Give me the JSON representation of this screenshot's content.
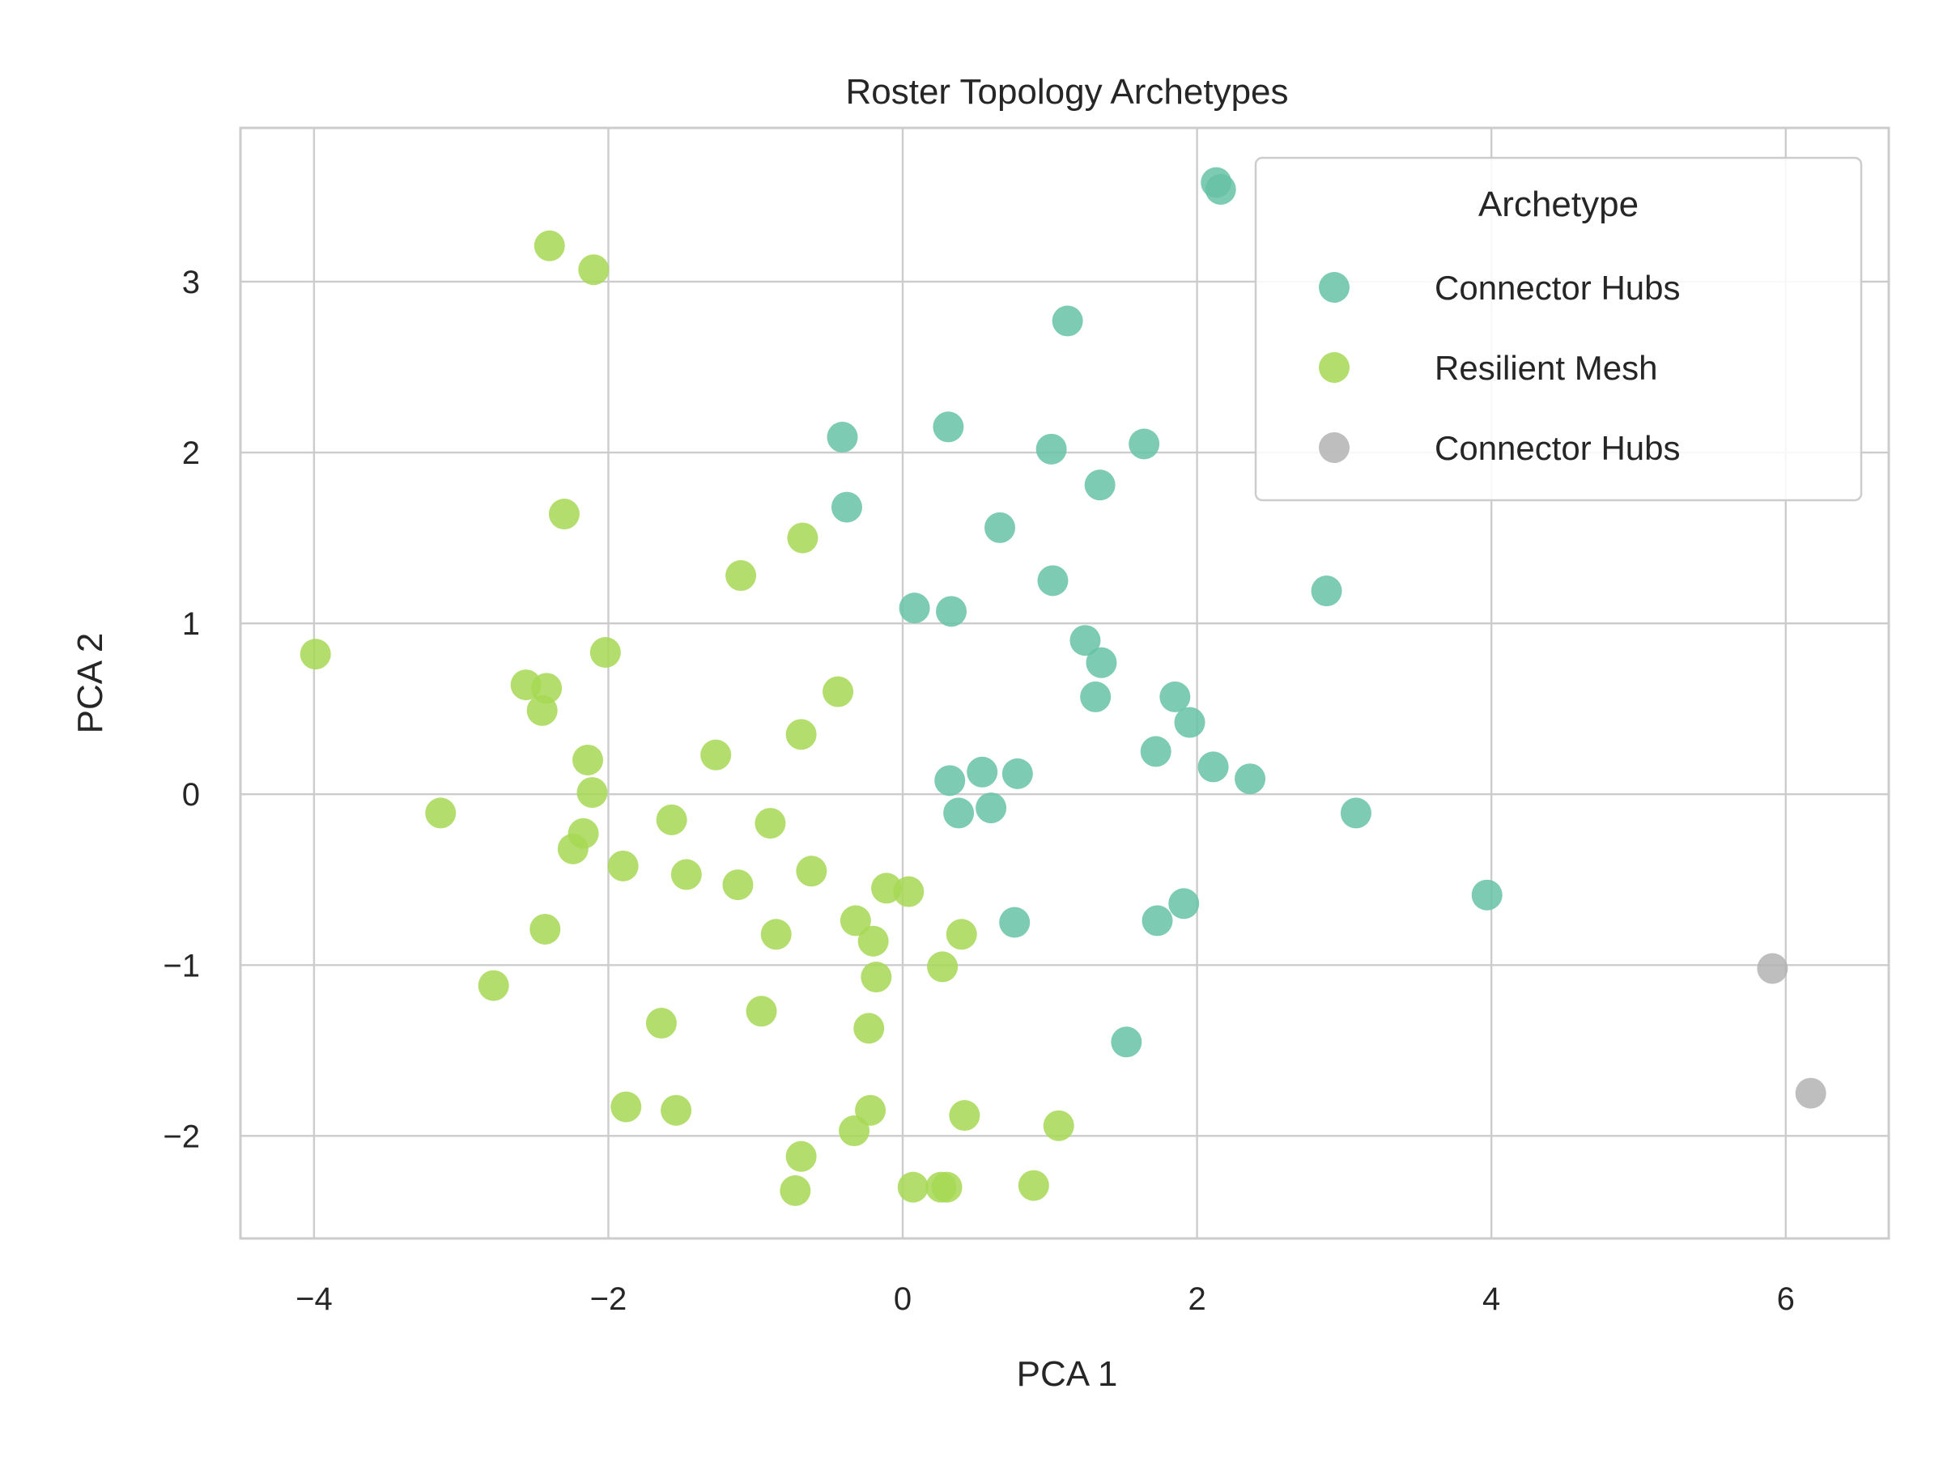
{
  "chart_data": {
    "type": "scatter",
    "title": "Roster Topology Archetypes",
    "xlabel": "PCA 1",
    "ylabel": "PCA 2",
    "xlim": [
      -4.5,
      6.7
    ],
    "ylim": [
      -2.6,
      3.9
    ],
    "xticks": [
      -4,
      -2,
      0,
      2,
      4,
      6
    ],
    "yticks": [
      -2,
      -1,
      0,
      1,
      2,
      3
    ],
    "xtick_labels": [
      "−4",
      "−2",
      "0",
      "2",
      "4",
      "6"
    ],
    "ytick_labels": [
      "−2",
      "−1",
      "0",
      "1",
      "2",
      "3"
    ],
    "grid": true,
    "legend": {
      "title": "Archetype",
      "placement": "top-right",
      "entries": [
        "Connector Hubs",
        "Resilient Mesh",
        "Connector Hubs"
      ]
    },
    "series": [
      {
        "name": "Connector Hubs",
        "color": "#66c2a5",
        "points": [
          [
            2.13,
            3.58
          ],
          [
            2.16,
            3.54
          ],
          [
            1.12,
            2.77
          ],
          [
            0.31,
            2.15
          ],
          [
            -0.41,
            2.09
          ],
          [
            1.01,
            2.02
          ],
          [
            1.64,
            2.05
          ],
          [
            1.34,
            1.81
          ],
          [
            -0.38,
            1.68
          ],
          [
            0.66,
            1.56
          ],
          [
            1.02,
            1.25
          ],
          [
            2.88,
            1.19
          ],
          [
            0.08,
            1.09
          ],
          [
            0.33,
            1.07
          ],
          [
            1.24,
            0.9
          ],
          [
            1.35,
            0.77
          ],
          [
            1.31,
            0.57
          ],
          [
            1.85,
            0.57
          ],
          [
            1.95,
            0.42
          ],
          [
            1.72,
            0.25
          ],
          [
            2.11,
            0.16
          ],
          [
            2.36,
            0.09
          ],
          [
            0.54,
            0.13
          ],
          [
            0.78,
            0.12
          ],
          [
            0.32,
            0.08
          ],
          [
            0.38,
            -0.11
          ],
          [
            0.6,
            -0.08
          ],
          [
            3.08,
            -0.11
          ],
          [
            3.97,
            -0.59
          ],
          [
            1.91,
            -0.64
          ],
          [
            1.73,
            -0.74
          ],
          [
            0.76,
            -0.75
          ],
          [
            1.52,
            -1.45
          ]
        ]
      },
      {
        "name": "Resilient Mesh",
        "color": "#a6d854",
        "points": [
          [
            -2.4,
            3.21
          ],
          [
            -2.1,
            3.07
          ],
          [
            -2.3,
            1.64
          ],
          [
            -0.68,
            1.5
          ],
          [
            -1.1,
            1.28
          ],
          [
            -3.99,
            0.82
          ],
          [
            -2.02,
            0.83
          ],
          [
            -2.56,
            0.64
          ],
          [
            -2.42,
            0.62
          ],
          [
            -2.45,
            0.49
          ],
          [
            -0.44,
            0.6
          ],
          [
            -0.69,
            0.35
          ],
          [
            -1.27,
            0.23
          ],
          [
            -2.14,
            0.2
          ],
          [
            -2.11,
            0.01
          ],
          [
            -3.14,
            -0.11
          ],
          [
            -1.57,
            -0.15
          ],
          [
            -0.9,
            -0.17
          ],
          [
            -2.17,
            -0.23
          ],
          [
            -2.24,
            -0.32
          ],
          [
            -1.9,
            -0.42
          ],
          [
            -1.47,
            -0.47
          ],
          [
            -0.62,
            -0.45
          ],
          [
            -1.12,
            -0.53
          ],
          [
            -0.11,
            -0.55
          ],
          [
            0.04,
            -0.57
          ],
          [
            -0.32,
            -0.74
          ],
          [
            -2.43,
            -0.79
          ],
          [
            -0.86,
            -0.82
          ],
          [
            -0.2,
            -0.86
          ],
          [
            0.4,
            -0.82
          ],
          [
            0.27,
            -1.01
          ],
          [
            -0.18,
            -1.07
          ],
          [
            -2.78,
            -1.12
          ],
          [
            -0.96,
            -1.27
          ],
          [
            -1.64,
            -1.34
          ],
          [
            -0.23,
            -1.37
          ],
          [
            -1.88,
            -1.83
          ],
          [
            -1.54,
            -1.85
          ],
          [
            -0.22,
            -1.85
          ],
          [
            0.42,
            -1.88
          ],
          [
            -0.33,
            -1.97
          ],
          [
            1.06,
            -1.94
          ],
          [
            -0.69,
            -2.12
          ],
          [
            -0.73,
            -2.32
          ],
          [
            0.07,
            -2.3
          ],
          [
            0.26,
            -2.3
          ],
          [
            0.3,
            -2.3
          ],
          [
            0.89,
            -2.29
          ]
        ]
      },
      {
        "name": "Connector Hubs",
        "color": "#b3b3b3",
        "points": [
          [
            5.91,
            -1.02
          ],
          [
            6.17,
            -1.75
          ]
        ]
      }
    ]
  }
}
